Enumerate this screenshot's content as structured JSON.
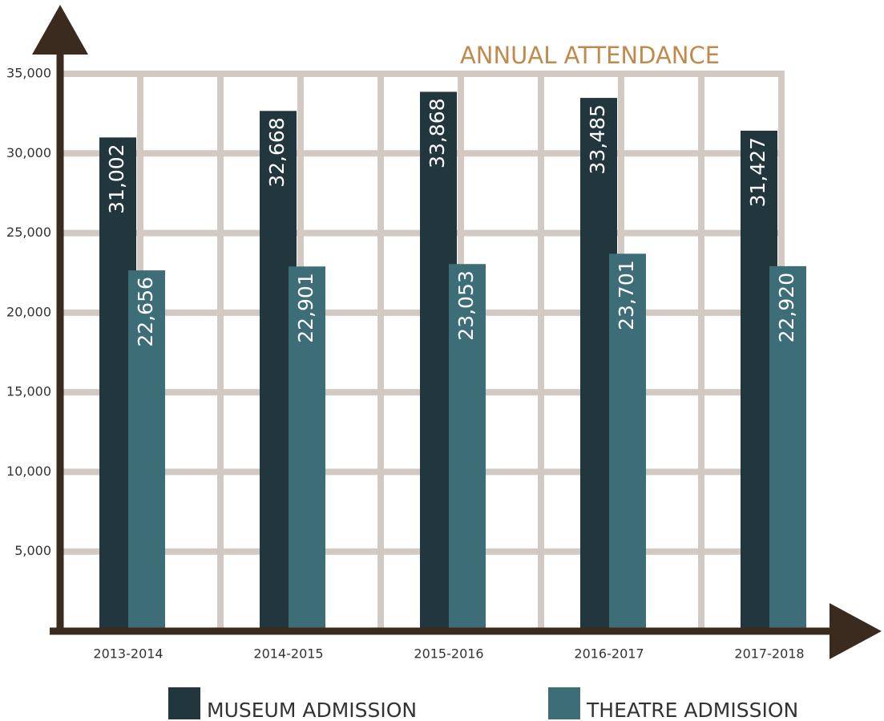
{
  "chart_data": {
    "type": "bar",
    "title": "ANNUAL ATTENDANCE",
    "categories": [
      "2013-2014",
      "2014-2015",
      "2015-2016",
      "2016-2017",
      "2017-2018"
    ],
    "series": [
      {
        "name": "MUSEUM ADMISSION",
        "color": "#21373d",
        "values": [
          31002,
          32668,
          33868,
          33485,
          31427
        ],
        "value_labels": [
          "31,002",
          "32,668",
          "33,868",
          "33,485",
          "31,427"
        ]
      },
      {
        "name": "THEATRE ADMISSION",
        "color": "#3d6e78",
        "values": [
          22656,
          22901,
          23053,
          23701,
          22920
        ],
        "value_labels": [
          "22,656",
          "22,901",
          "23,053",
          "23,701",
          "22,920"
        ]
      }
    ],
    "ylim": [
      0,
      35000
    ],
    "yticks": [
      {
        "value": 5000,
        "label": "5,000"
      },
      {
        "value": 10000,
        "label": "10,000"
      },
      {
        "value": 15000,
        "label": "15,000"
      },
      {
        "value": 20000,
        "label": "20,000"
      },
      {
        "value": 25000,
        "label": "25,000"
      },
      {
        "value": 30000,
        "label": "30,000"
      },
      {
        "value": 35000,
        "label": "35,000"
      }
    ],
    "grid": true
  }
}
